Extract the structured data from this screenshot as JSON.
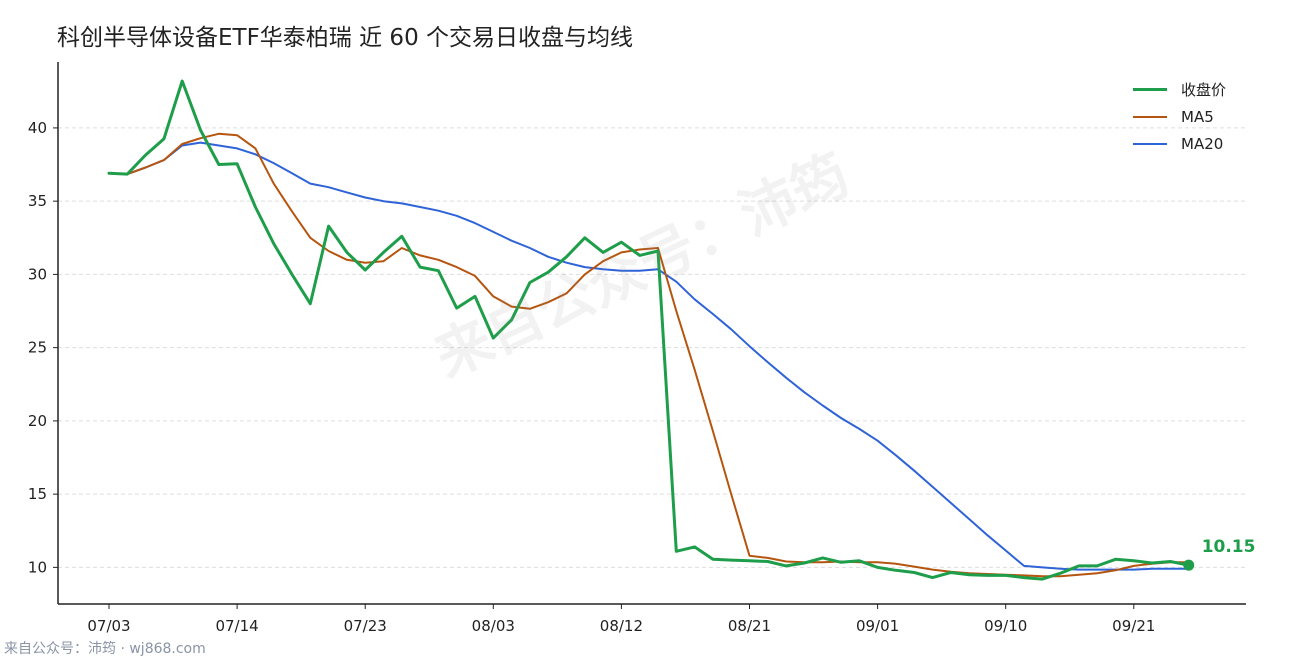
{
  "title": "科创半导体设备ETF华泰柏瑞 近 60 个交易日收盘与均线",
  "footer": "来自公众号：沛筠 · wj868.com",
  "watermark": "来自公众号：沛筠",
  "colors": {
    "close": "#1e9e4a",
    "ma5": "#b5550f",
    "ma20": "#2f63d8",
    "grid": "#dddddd",
    "axis": "#222222"
  },
  "chart_data": {
    "type": "line",
    "title": "科创半导体设备ETF华泰柏瑞 近 60 个交易日收盘与均线",
    "x_tick_labels": [
      "07/03",
      "07/14",
      "07/23",
      "08/03",
      "08/12",
      "08/21",
      "09/01",
      "09/10",
      "09/21"
    ],
    "x_tick_index": [
      0,
      7,
      14,
      21,
      28,
      35,
      42,
      49,
      56
    ],
    "ylim": [
      7.5,
      44.5
    ],
    "y_ticks": [
      10,
      15,
      20,
      25,
      30,
      35,
      40
    ],
    "grid": "horizontal dashed",
    "legend_position": "top-right",
    "end_label": "10.15",
    "series": [
      {
        "name": "收盘价",
        "key": "close",
        "values": [
          36.9,
          36.85,
          38.15,
          39.25,
          43.2,
          39.85,
          37.5,
          37.55,
          34.6,
          32.1,
          30.0,
          28.0,
          33.3,
          31.5,
          30.3,
          31.5,
          32.6,
          30.5,
          30.25,
          27.7,
          28.5,
          25.65,
          26.9,
          29.45,
          30.15,
          31.2,
          32.5,
          31.5,
          32.2,
          31.3,
          31.6,
          11.1,
          11.4,
          10.55,
          10.5,
          10.45,
          10.4,
          10.1,
          10.3,
          10.65,
          10.35,
          10.45,
          10.0,
          9.8,
          9.65,
          9.3,
          9.65,
          9.5,
          9.45,
          9.45,
          9.3,
          9.2,
          9.6,
          10.1,
          10.1,
          10.55,
          10.45,
          10.3,
          10.4,
          10.15
        ]
      },
      {
        "name": "MA5",
        "key": "ma5",
        "values": [
          36.9,
          36.85,
          37.3,
          37.8,
          38.9,
          39.3,
          39.6,
          39.5,
          38.6,
          36.2,
          34.3,
          32.5,
          31.6,
          31.0,
          30.8,
          30.9,
          31.8,
          31.3,
          31.0,
          30.5,
          29.9,
          28.5,
          27.8,
          27.65,
          28.1,
          28.7,
          30.0,
          30.9,
          31.5,
          31.7,
          31.8,
          27.5,
          23.5,
          19.3,
          15.0,
          10.8,
          10.65,
          10.4,
          10.35,
          10.35,
          10.4,
          10.35,
          10.35,
          10.25,
          10.05,
          9.85,
          9.7,
          9.6,
          9.55,
          9.5,
          9.45,
          9.4,
          9.4,
          9.5,
          9.6,
          9.8,
          10.1,
          10.25,
          10.35,
          10.35
        ]
      },
      {
        "name": "MA20",
        "key": "ma20",
        "values": [
          36.9,
          36.85,
          37.3,
          37.8,
          38.8,
          39.0,
          38.8,
          38.6,
          38.2,
          37.6,
          36.9,
          36.2,
          35.95,
          35.6,
          35.25,
          35.0,
          34.85,
          34.6,
          34.35,
          34.0,
          33.5,
          32.9,
          32.3,
          31.8,
          31.2,
          30.8,
          30.5,
          30.35,
          30.25,
          30.25,
          30.35,
          29.5,
          28.3,
          27.3,
          26.25,
          25.1,
          24.0,
          22.95,
          21.95,
          21.05,
          20.2,
          19.45,
          18.65,
          17.65,
          16.6,
          15.5,
          14.4,
          13.3,
          12.2,
          11.15,
          10.1,
          10.0,
          9.9,
          9.85,
          9.85,
          9.85,
          9.85,
          9.9,
          9.9,
          9.9
        ]
      }
    ]
  }
}
